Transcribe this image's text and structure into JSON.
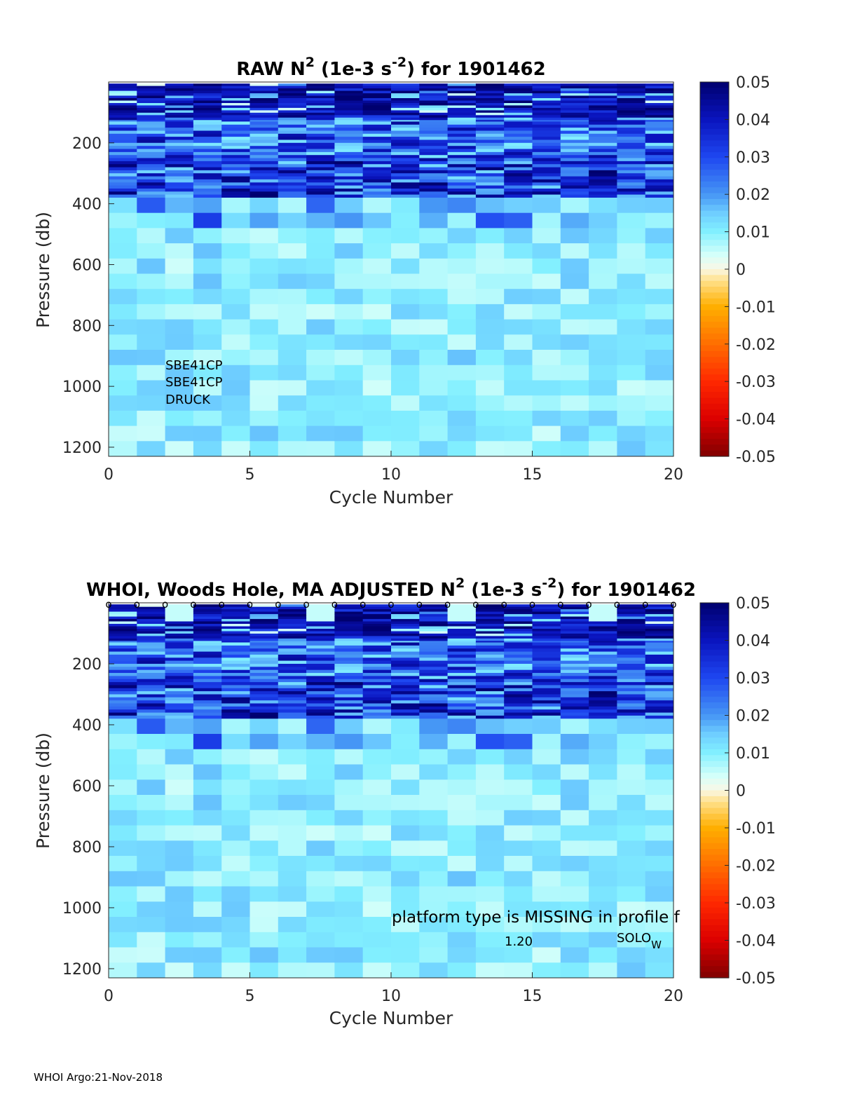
{
  "footer": "WHOI Argo:21-Nov-2018",
  "chart_data": [
    {
      "type": "heatmap",
      "title_prefix": "RAW N",
      "title_sup1": "2",
      "title_mid": " (1e-3 s",
      "title_sup2": "-2",
      "title_suffix": ") for 1901462",
      "xlabel": "Cycle Number",
      "ylabel": "Pressure (db)",
      "xlim": [
        0,
        20
      ],
      "ylim": [
        1230,
        0
      ],
      "xticks": [
        "0",
        "5",
        "10",
        "15",
        "20"
      ],
      "yticks": [
        "200",
        "400",
        "600",
        "800",
        "1000",
        "1200"
      ],
      "colorbar_ticks": [
        "0.05",
        "0.04",
        "0.03",
        "0.02",
        "0.01",
        "0",
        "-0.01",
        "-0.02",
        "-0.03",
        "-0.04",
        "-0.05"
      ],
      "clim": [
        -0.05,
        0.05
      ],
      "annotations": [
        "SBE41CP",
        "SBE41CP",
        "DRUCK"
      ]
    },
    {
      "type": "heatmap",
      "title_prefix": "WHOI, Woods Hole, MA  ADJUSTED N",
      "title_sup1": "2",
      "title_mid": " (1e-3 s",
      "title_sup2": "-2",
      "title_suffix": ") for 1901462",
      "xlabel": "Cycle Number",
      "ylabel": "Pressure (db)",
      "xlim": [
        0,
        20
      ],
      "ylim": [
        1230,
        0
      ],
      "xticks": [
        "0",
        "5",
        "10",
        "15",
        "20"
      ],
      "yticks": [
        "200",
        "400",
        "600",
        "800",
        "1000",
        "1200"
      ],
      "colorbar_ticks": [
        "0.05",
        "0.04",
        "0.03",
        "0.02",
        "0.01",
        "0",
        "-0.01",
        "-0.02",
        "-0.03",
        "-0.04",
        "-0.05"
      ],
      "clim": [
        -0.05,
        0.05
      ],
      "marker_symbol": "o",
      "platform_note": "platform type is MISSING in profile f",
      "version_note": "1.20",
      "solo_label": "SOLO",
      "solo_sub": "W"
    }
  ]
}
